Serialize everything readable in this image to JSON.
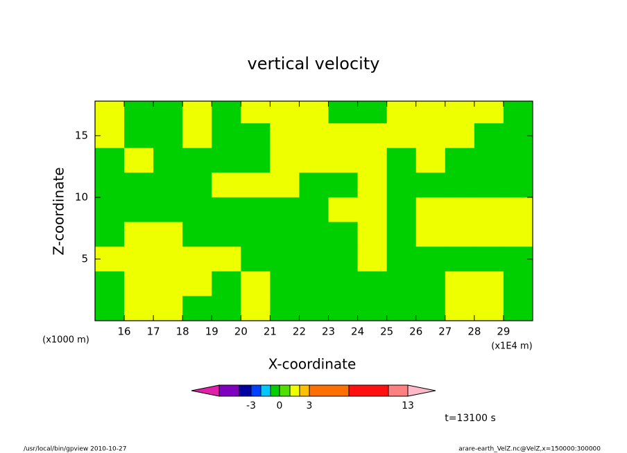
{
  "chart_data": {
    "type": "contour",
    "title": "vertical velocity",
    "x_label": "X-coordinate",
    "y_label": "Z-coordinate",
    "x_unit": "(x1E4 m)",
    "y_unit": "(x1000 m)",
    "time_label": "t=13100 s",
    "footer_left": "/usr/local/bin/gpview  2010-10-27",
    "footer_right": "arare-earth_VelZ.nc@VelZ,x=150000:300000",
    "xlim": [
      15,
      30
    ],
    "ylim": [
      0,
      17.8
    ],
    "xticks": [
      16,
      17,
      18,
      19,
      20,
      21,
      22,
      23,
      24,
      25,
      26,
      27,
      28,
      29
    ],
    "yticks": [
      5,
      10,
      15
    ],
    "z": [
      [
        1.5,
        -0.5,
        -0.5,
        1.5,
        -0.5,
        1.5,
        1.5,
        1.5,
        -0.5,
        -0.5,
        1.5,
        1.5,
        1.5,
        1.5,
        -0.5
      ],
      [
        1.5,
        -0.5,
        -0.5,
        1.5,
        -0.5,
        -0.5,
        1.5,
        1.5,
        1.5,
        1.5,
        1.5,
        1.5,
        1.5,
        -0.5,
        -0.5
      ],
      [
        -0.5,
        1.5,
        -0.5,
        -0.5,
        -0.5,
        -0.5,
        1.5,
        1.5,
        1.5,
        1.5,
        -0.5,
        1.5,
        -0.5,
        -0.5,
        -0.5
      ],
      [
        -0.5,
        -0.5,
        -0.5,
        -0.5,
        1.5,
        1.5,
        1.5,
        -0.5,
        -0.5,
        1.5,
        -0.5,
        -0.5,
        -0.5,
        -0.5,
        -0.5
      ],
      [
        -0.5,
        -0.5,
        -0.5,
        -0.5,
        -0.5,
        -0.5,
        -0.5,
        -0.5,
        1.5,
        1.5,
        -0.5,
        1.5,
        1.5,
        1.5,
        1.5
      ],
      [
        -0.5,
        1.5,
        1.5,
        -0.5,
        -0.5,
        -0.5,
        -0.5,
        -0.5,
        -0.5,
        1.5,
        -0.5,
        1.5,
        1.5,
        1.5,
        1.5
      ],
      [
        1.5,
        1.5,
        1.5,
        1.5,
        1.5,
        -0.5,
        -0.5,
        -0.5,
        -0.5,
        1.5,
        -0.5,
        -0.5,
        -0.5,
        -0.5,
        -0.5
      ],
      [
        -0.5,
        1.5,
        1.5,
        1.5,
        -0.5,
        1.5,
        -0.5,
        -0.5,
        -0.5,
        -0.5,
        -0.5,
        -0.5,
        1.5,
        1.5,
        -0.5
      ],
      [
        -0.5,
        1.5,
        1.5,
        -0.5,
        -0.5,
        1.5,
        -0.5,
        -0.5,
        -0.5,
        -0.5,
        -0.5,
        -0.5,
        1.5,
        1.5,
        -0.5
      ]
    ],
    "levels": [
      -5,
      -4,
      -3,
      -2,
      -1,
      0,
      1,
      2,
      3,
      6,
      9,
      13
    ],
    "colors": [
      "#e020a8",
      "#8000c0",
      "#0000a0",
      "#0040ff",
      "#00c8ff",
      "#00d000",
      "#50e000",
      "#eeff00",
      "#ffc000",
      "#ff7000",
      "#ff1010",
      "#ff8080",
      "#ffb8c8"
    ],
    "colorbar_ticks": [
      -3,
      0,
      3,
      13
    ]
  }
}
